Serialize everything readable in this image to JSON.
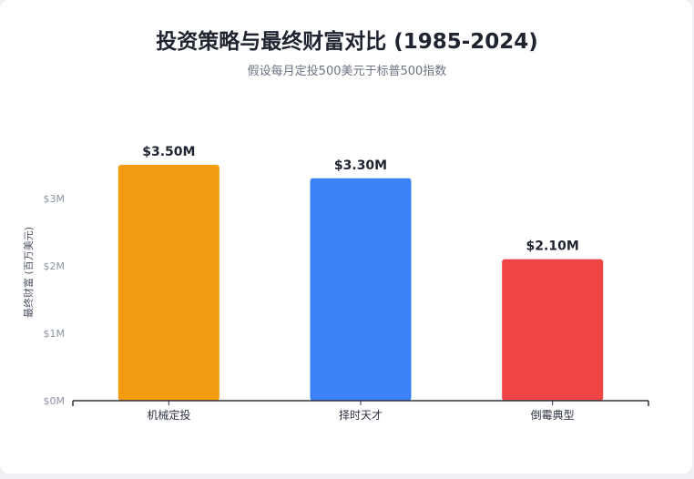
{
  "chart_data": {
    "type": "bar",
    "title": "投资策略与最终财富对比 (1985-2024)",
    "subtitle": "假设每月定投500美元于标普500指数",
    "ylabel": "最终财富 (百万美元)",
    "xlabel": "",
    "categories": [
      "机械定投",
      "择时天才",
      "倒霉典型"
    ],
    "values": [
      3.5,
      3.3,
      2.1
    ],
    "data_labels": [
      "$3.50M",
      "$3.30M",
      "$2.10M"
    ],
    "colors": [
      "#f39c12",
      "#3b82f6",
      "#ef4444"
    ],
    "ylim": [
      0,
      4
    ],
    "yticks": [
      0,
      1,
      2,
      3
    ],
    "ytick_labels": [
      "$0M",
      "$1M",
      "$2M",
      "$3M"
    ],
    "grid": false,
    "legend": "none"
  }
}
